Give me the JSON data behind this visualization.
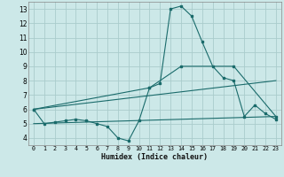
{
  "background_color": "#cce8e8",
  "grid_color": "#aacccc",
  "line_color": "#1a6b6b",
  "marker_color": "#1a6b6b",
  "xlabel": "Humidex (Indice chaleur)",
  "xlim": [
    -0.5,
    23.5
  ],
  "ylim": [
    3.5,
    13.5
  ],
  "xticks": [
    0,
    1,
    2,
    3,
    4,
    5,
    6,
    7,
    8,
    9,
    10,
    11,
    12,
    13,
    14,
    15,
    16,
    17,
    18,
    19,
    20,
    21,
    22,
    23
  ],
  "yticks": [
    4,
    5,
    6,
    7,
    8,
    9,
    10,
    11,
    12,
    13
  ],
  "series1_x": [
    0,
    1,
    2,
    3,
    4,
    5,
    6,
    7,
    8,
    9,
    10,
    11,
    12,
    13,
    14,
    15,
    16,
    17,
    18,
    19,
    20,
    21,
    22,
    23
  ],
  "series1_y": [
    6.0,
    5.0,
    5.1,
    5.2,
    5.3,
    5.2,
    5.0,
    4.8,
    4.0,
    3.8,
    5.2,
    7.5,
    7.8,
    13.0,
    13.2,
    12.5,
    10.7,
    9.0,
    8.2,
    8.0,
    5.5,
    6.3,
    5.7,
    5.3
  ],
  "series2_x": [
    0,
    23
  ],
  "series2_y": [
    5.0,
    5.5
  ],
  "series3_x": [
    0,
    23
  ],
  "series3_y": [
    6.0,
    8.0
  ],
  "series4_x": [
    0,
    11,
    14,
    19,
    23
  ],
  "series4_y": [
    6.0,
    7.5,
    9.0,
    9.0,
    5.5
  ]
}
